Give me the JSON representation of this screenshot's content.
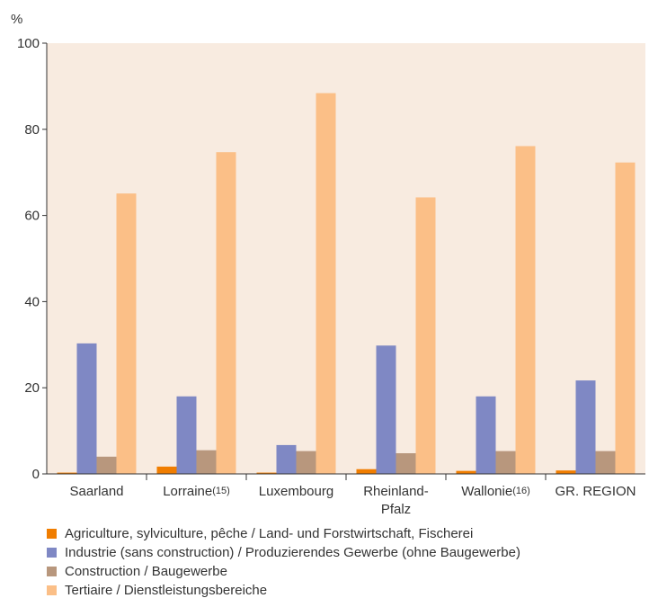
{
  "chart_data": {
    "type": "bar",
    "unit_label": "%",
    "categories": [
      {
        "label": "Saarland",
        "sup": ""
      },
      {
        "label": "Lorraine",
        "sup": "(15)"
      },
      {
        "label": "Luxembourg",
        "sup": ""
      },
      {
        "label": "Rheinland-\nPfalz",
        "sup": ""
      },
      {
        "label": "Wallonie",
        "sup": "(16)"
      },
      {
        "label": "GR. REGION",
        "sup": ""
      }
    ],
    "series": [
      {
        "name": "Agriculture, sylviculture, pêche / Land- und Forstwirtschaft, Fischerei",
        "color": "#f07d00",
        "values": [
          0.3,
          1.7,
          0.3,
          1.1,
          0.7,
          0.8
        ]
      },
      {
        "name": "Industrie (sans construction) / Produzierendes Gewerbe (ohne Baugewerbe)",
        "color": "#7f88c4",
        "values": [
          30.3,
          18.0,
          6.7,
          29.8,
          18.0,
          21.7
        ]
      },
      {
        "name": "Construction / Baugewerbe",
        "color": "#b8977d",
        "values": [
          4.0,
          5.5,
          5.3,
          4.8,
          5.3,
          5.3
        ]
      },
      {
        "name": "Tertiaire / Dienstleistungsbereiche",
        "color": "#fbbf87",
        "values": [
          65.1,
          74.7,
          88.4,
          64.2,
          76.1,
          72.3
        ]
      }
    ],
    "yticks": [
      0,
      20,
      40,
      60,
      80,
      100
    ],
    "ylim": [
      0,
      100
    ],
    "plot_background": "#f8ebe0",
    "grid": false,
    "legend_position": "bottom"
  }
}
